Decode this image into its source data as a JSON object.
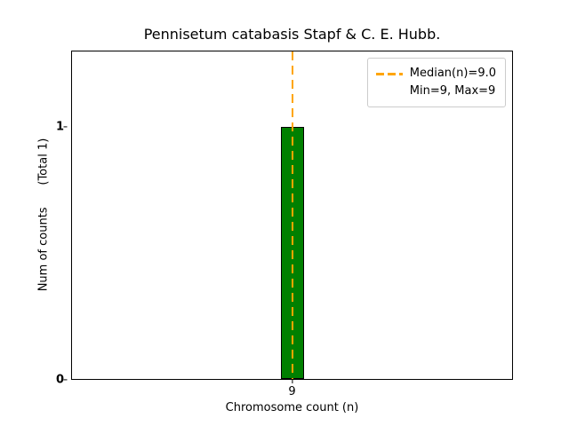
{
  "chart_data": {
    "type": "bar",
    "title": "Pennisetum catabasis Stapf & C. E. Hubb.",
    "xlabel": "Chromosome count (n)",
    "ylabel": "Num of counts      (Total 1)",
    "categories": [
      "9"
    ],
    "values": [
      1
    ],
    "total_label": "(Total 1)",
    "ylim": [
      0,
      1.3
    ],
    "yticks": [
      0,
      1
    ],
    "ytick_labels": [
      "0",
      "1"
    ],
    "xtick_labels": [
      "9"
    ],
    "bar_color": "#008000",
    "bar_edge_color": "#000000",
    "median_line": {
      "x": 9,
      "color": "#ffa500",
      "style": "dashed"
    },
    "legend": {
      "position": "upper right",
      "entries": [
        "Median(n)=9.0",
        "Min=9, Max=9"
      ]
    },
    "grid": false
  }
}
